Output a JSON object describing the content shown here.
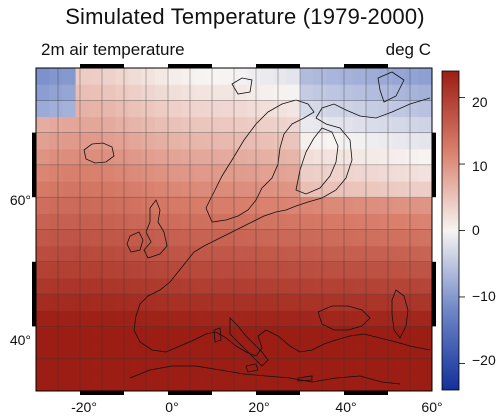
{
  "header": {
    "title": "Simulated Temperature (1979-2000)",
    "variable": "2m air temperature",
    "unit": "deg C"
  },
  "map": {
    "projection": "lon-lat",
    "lon_range": [
      -30,
      60
    ],
    "lat_range": [
      30,
      80
    ],
    "lon_ticks": [
      "-20°",
      "0°",
      "20°",
      "40°",
      "60°"
    ],
    "lat_ticks": [
      "60°",
      "40°"
    ],
    "colormap": "blue-white-red",
    "colors": {
      "cold": "#2b3fa8",
      "neutral": "#f7f4f2",
      "warm": "#b0281e",
      "frame": "#000000"
    }
  },
  "colorbar": {
    "range": [
      -24,
      24
    ],
    "tick_labels": [
      "20",
      "10",
      "0",
      "−10",
      "−20"
    ]
  },
  "chart_data": {
    "type": "heatmap",
    "title": "Simulated Temperature (1979-2000)",
    "subtitle": "2m air temperature",
    "unit": "deg C",
    "x_range": [
      -30,
      60
    ],
    "y_range": [
      30,
      80
    ],
    "color_range": [
      -24,
      24
    ],
    "colorbar_ticks": [
      20,
      10,
      0,
      -10,
      -20
    ]
  }
}
